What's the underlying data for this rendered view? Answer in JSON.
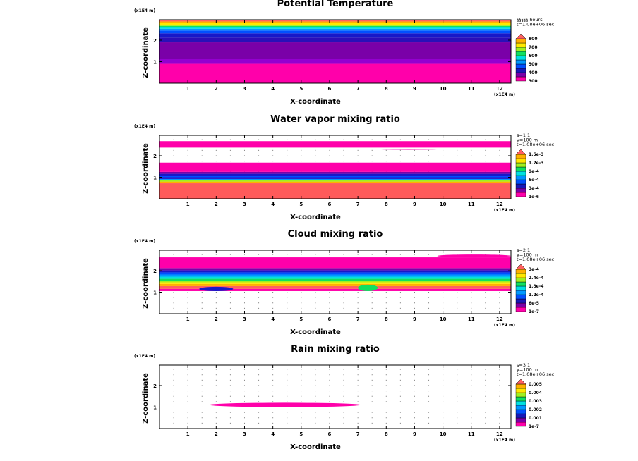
{
  "chart_data": [
    {
      "type": "heatmap",
      "title": "Potential Temperature",
      "xlabel": "X-coordinate",
      "ylabel": "Z-coordinate",
      "x_scale_label": "(x1E4 m)",
      "z_scale_label": "(x1E4 m)",
      "xlim": [
        0,
        12.4
      ],
      "zlim": [
        0,
        2.95
      ],
      "xticks": [
        "1",
        "2",
        "3",
        "4",
        "5",
        "6",
        "7",
        "8",
        "9",
        "10",
        "11",
        "12"
      ],
      "zticks": [
        "1",
        "2"
      ],
      "info": [
        "§§§§§ hours",
        "t=1.08e+06 sec"
      ],
      "colorbar": {
        "colors": [
          "#ff00aa",
          "#7a00a8",
          "#1818b8",
          "#0050ff",
          "#0098ff",
          "#00e0e0",
          "#10e060",
          "#a0f020",
          "#ffe800",
          "#ffb000",
          "#ff6060"
        ],
        "labels": [
          "300",
          "400",
          "500",
          "600",
          "700",
          "800"
        ]
      },
      "bands": [
        {
          "z0": 0,
          "z1": 0.9,
          "color": "#ff00aa"
        },
        {
          "z0": 0.9,
          "z1": 1.12,
          "color": "#9400d0"
        },
        {
          "z0": 1.12,
          "z1": 1.9,
          "color": "#7a00a8"
        },
        {
          "z0": 1.9,
          "z1": 2.12,
          "color": "#2a10b8"
        },
        {
          "z0": 2.12,
          "z1": 2.32,
          "color": "#1818c8"
        },
        {
          "z0": 2.32,
          "z1": 2.45,
          "color": "#0050ff"
        },
        {
          "z0": 2.45,
          "z1": 2.53,
          "color": "#0098ff"
        },
        {
          "z0": 2.53,
          "z1": 2.6,
          "color": "#00e0e0"
        },
        {
          "z0": 2.6,
          "z1": 2.66,
          "color": "#10e060"
        },
        {
          "z0": 2.66,
          "z1": 2.72,
          "color": "#a0f020"
        },
        {
          "z0": 2.72,
          "z1": 2.8,
          "color": "#ffe800"
        },
        {
          "z0": 2.8,
          "z1": 2.87,
          "color": "#ffb000"
        },
        {
          "z0": 2.87,
          "z1": 2.95,
          "color": "#ff6060"
        }
      ],
      "blobs": []
    },
    {
      "type": "heatmap",
      "title": "Water vapor mixing ratio",
      "xlabel": "X-coordinate",
      "ylabel": "Z-coordinate",
      "x_scale_label": "(x1E4 m)",
      "z_scale_label": "(x1E4 m)",
      "xlim": [
        0,
        12.4
      ],
      "zlim": [
        0,
        2.95
      ],
      "xticks": [
        "1",
        "2",
        "3",
        "4",
        "5",
        "6",
        "7",
        "8",
        "9",
        "10",
        "11",
        "12"
      ],
      "zticks": [
        "1",
        "2"
      ],
      "info": [
        "s=1 1",
        "y=100 m",
        "t=1.08e+06 sec"
      ],
      "colorbar": {
        "colors": [
          "#ff00aa",
          "#7a00a8",
          "#1818b8",
          "#0050ff",
          "#0098ff",
          "#00e0e0",
          "#10e060",
          "#a0f020",
          "#ffe800",
          "#ffb000",
          "#ff6060"
        ],
        "labels": [
          "1e-6",
          "3e-4",
          "6e-4",
          "9e-4",
          "1.2e-3",
          "1.5e-3"
        ]
      },
      "bands": [
        {
          "z0": 0,
          "z1": 0.72,
          "color": "#ff5a5a"
        },
        {
          "z0": 0.72,
          "z1": 0.8,
          "color": "#ffb000"
        },
        {
          "z0": 0.8,
          "z1": 0.86,
          "color": "#a0f020"
        },
        {
          "z0": 0.86,
          "z1": 0.92,
          "color": "#0098ff"
        },
        {
          "z0": 0.92,
          "z1": 1.0,
          "color": "#1818c8"
        },
        {
          "z0": 1.0,
          "z1": 1.08,
          "color": "#0050ff"
        },
        {
          "z0": 1.08,
          "z1": 1.16,
          "color": "#1818c8"
        },
        {
          "z0": 1.16,
          "z1": 1.25,
          "color": "#7a00a8"
        },
        {
          "z0": 1.25,
          "z1": 1.68,
          "color": "#ff00aa"
        },
        {
          "z0": 2.38,
          "z1": 2.68,
          "color": "#ff00aa"
        }
      ],
      "blobs": [
        {
          "x0": 7.8,
          "x1": 9.8,
          "z0": 2.28,
          "z1": 2.32,
          "color": "#ff00aa"
        }
      ]
    },
    {
      "type": "heatmap",
      "title": "Cloud mixing ratio",
      "xlabel": "X-coordinate",
      "ylabel": "Z-coordinate",
      "x_scale_label": "(x1E4 m)",
      "z_scale_label": "(x1E4 m)",
      "xlim": [
        0,
        12.4
      ],
      "zlim": [
        0,
        2.95
      ],
      "xticks": [
        "1",
        "2",
        "3",
        "4",
        "5",
        "6",
        "7",
        "8",
        "9",
        "10",
        "11",
        "12"
      ],
      "zticks": [
        "1",
        "2"
      ],
      "info": [
        "s=2 1",
        "y=100 m",
        "t=1.08e+06 sec"
      ],
      "colorbar": {
        "colors": [
          "#ff00aa",
          "#7a00a8",
          "#1818b8",
          "#0050ff",
          "#0098ff",
          "#00e0e0",
          "#10e060",
          "#a0f020",
          "#ffe800",
          "#ffb000",
          "#ff6060"
        ],
        "labels": [
          "1e-7",
          "6e-5",
          "1.2e-4",
          "1.8e-4",
          "2.4e-4",
          "3e-4"
        ]
      },
      "bands": [
        {
          "z0": 1.05,
          "z1": 1.15,
          "color": "#ff00aa"
        },
        {
          "z0": 1.15,
          "z1": 1.28,
          "color": "#ff6060"
        },
        {
          "z0": 1.28,
          "z1": 1.38,
          "color": "#ffb000"
        },
        {
          "z0": 1.38,
          "z1": 1.46,
          "color": "#ffe800"
        },
        {
          "z0": 1.46,
          "z1": 1.54,
          "color": "#a0f020"
        },
        {
          "z0": 1.54,
          "z1": 1.62,
          "color": "#10e060"
        },
        {
          "z0": 1.62,
          "z1": 1.72,
          "color": "#00e0e0"
        },
        {
          "z0": 1.72,
          "z1": 1.82,
          "color": "#0098ff"
        },
        {
          "z0": 1.82,
          "z1": 1.92,
          "color": "#0050ff"
        },
        {
          "z0": 1.92,
          "z1": 2.02,
          "color": "#1818c8"
        },
        {
          "z0": 2.02,
          "z1": 2.12,
          "color": "#7a00a8"
        },
        {
          "z0": 2.12,
          "z1": 2.62,
          "color": "#ff00aa"
        }
      ],
      "blobs": [
        {
          "x0": 1.4,
          "x1": 2.6,
          "z0": 1.05,
          "z1": 1.25,
          "color": "#1818c8"
        },
        {
          "x0": 7.0,
          "x1": 7.7,
          "z0": 1.05,
          "z1": 1.35,
          "color": "#10e060"
        },
        {
          "x0": 9.8,
          "x1": 12.4,
          "z0": 2.62,
          "z1": 2.75,
          "color": "#ff00aa"
        }
      ]
    },
    {
      "type": "heatmap",
      "title": "Rain mixing ratio",
      "xlabel": "X-coordinate",
      "ylabel": "Z-coordinate",
      "x_scale_label": "(x1E4 m)",
      "z_scale_label": "(x1E4 m)",
      "xlim": [
        0,
        12.4
      ],
      "zlim": [
        0,
        2.95
      ],
      "xticks": [
        "1",
        "2",
        "3",
        "4",
        "5",
        "6",
        "7",
        "8",
        "9",
        "10",
        "11",
        "12"
      ],
      "zticks": [
        "1",
        "2"
      ],
      "info": [
        "s=3 1",
        "y=100 m",
        "t=1.08e+06 sec"
      ],
      "colorbar": {
        "colors": [
          "#ff00aa",
          "#7a00a8",
          "#1818b8",
          "#0050ff",
          "#0098ff",
          "#00e0e0",
          "#10e060",
          "#a0f020",
          "#ffe800",
          "#ffb000",
          "#ff6060"
        ],
        "labels": [
          "1e-7",
          "0.001",
          "0.002",
          "0.003",
          "0.004",
          "0.005"
        ]
      },
      "bands": [],
      "blobs": [
        {
          "x0": 1.75,
          "x1": 7.1,
          "z0": 1.0,
          "z1": 1.2,
          "color": "#ff00aa"
        }
      ]
    }
  ]
}
